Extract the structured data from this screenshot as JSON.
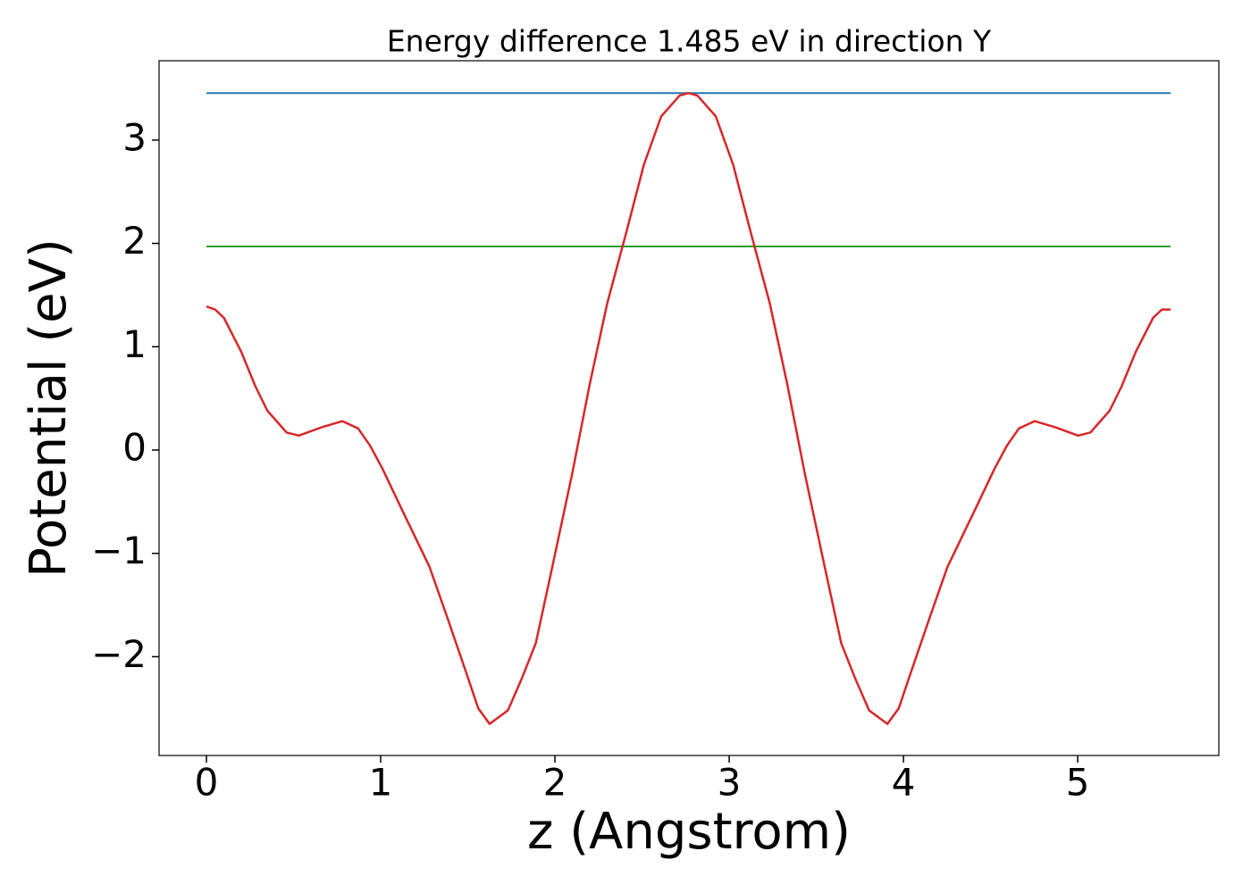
{
  "chart_data": {
    "type": "line",
    "title": "Energy difference 1.485 eV in direction Y",
    "xlabel": "z (Angstrom)",
    "ylabel": "Potential (eV)",
    "xlim": [
      -0.272,
      5.81
    ],
    "ylim": [
      -2.956,
      3.768
    ],
    "xticks": [
      0,
      1,
      2,
      3,
      4,
      5
    ],
    "yticks": [
      {
        "value": -2,
        "label": "−2"
      },
      {
        "value": -1,
        "label": "−1"
      },
      0,
      1,
      2,
      3
    ],
    "grid": false,
    "series": [
      {
        "color": "#1f77b4",
        "x": [
          0,
          5.533
        ],
        "values": [
          3.455,
          3.455
        ]
      },
      {
        "color": "#2ca02c",
        "x": [
          0,
          5.533
        ],
        "values": [
          1.97,
          1.97
        ]
      },
      {
        "color": "#d62728",
        "x": [
          0,
          0.05,
          0.1,
          0.2,
          0.28,
          0.35,
          0.46,
          0.53,
          0.66,
          0.78,
          0.87,
          0.94,
          1.01,
          1.12,
          1.28,
          1.38,
          1.5,
          1.56,
          1.625,
          1.73,
          1.81,
          1.89,
          1.99,
          2.1,
          2.2,
          2.3,
          2.41,
          2.51,
          2.61,
          2.715,
          2.766,
          2.818,
          2.923,
          3.023,
          3.123,
          3.233,
          3.333,
          3.433,
          3.543,
          3.643,
          3.723,
          3.803,
          3.908,
          3.973,
          4.033,
          4.153,
          4.253,
          4.413,
          4.523,
          4.593,
          4.663,
          4.753,
          4.873,
          5.003,
          5.073,
          5.183,
          5.253,
          5.333,
          5.433,
          5.483,
          5.533
        ],
        "values": [
          1.39,
          1.36,
          1.28,
          0.95,
          0.62,
          0.38,
          0.17,
          0.14,
          0.22,
          0.28,
          0.21,
          0.04,
          -0.18,
          -0.57,
          -1.13,
          -1.61,
          -2.2,
          -2.5,
          -2.65,
          -2.52,
          -2.21,
          -1.87,
          -1.09,
          -0.22,
          0.64,
          1.42,
          2.11,
          2.76,
          3.23,
          3.43,
          3.455,
          3.43,
          3.23,
          2.76,
          2.11,
          1.42,
          0.64,
          -0.22,
          -1.09,
          -1.87,
          -2.21,
          -2.52,
          -2.65,
          -2.5,
          -2.2,
          -1.61,
          -1.13,
          -0.57,
          -0.18,
          0.04,
          0.21,
          0.28,
          0.22,
          0.14,
          0.17,
          0.38,
          0.62,
          0.95,
          1.28,
          1.36,
          1.36
        ]
      }
    ]
  }
}
